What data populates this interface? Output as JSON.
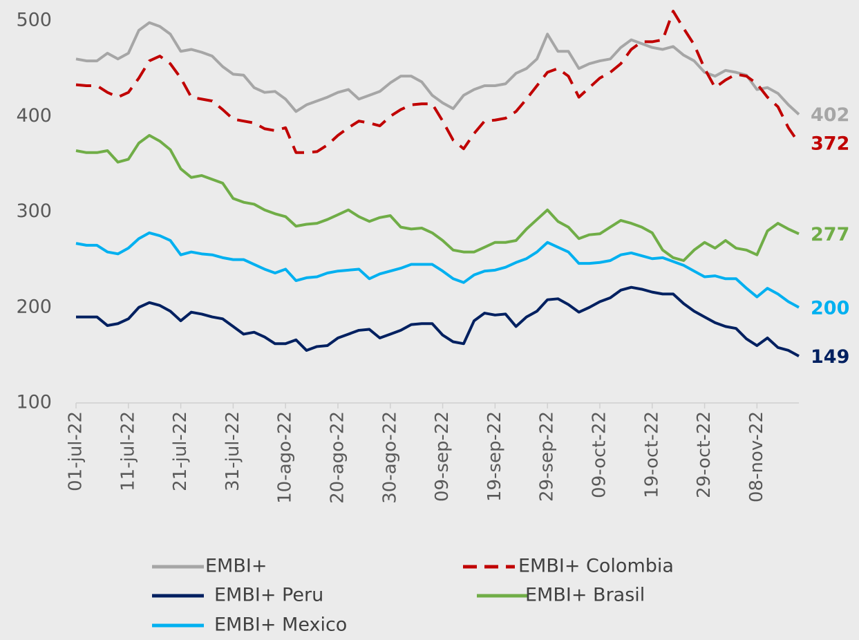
{
  "chart_data": {
    "type": "line",
    "categories": [
      "01-jul-22",
      null,
      null,
      null,
      null,
      "11-jul-22",
      null,
      null,
      null,
      null,
      "21-jul-22",
      null,
      null,
      null,
      null,
      "31-jul-22",
      null,
      null,
      null,
      null,
      "10-ago-22",
      null,
      null,
      null,
      null,
      "20-ago-22",
      null,
      null,
      null,
      null,
      "30-ago-22",
      null,
      null,
      null,
      null,
      "09-sep-22",
      null,
      null,
      null,
      null,
      "19-sep-22",
      null,
      null,
      null,
      null,
      "29-sep-22",
      null,
      null,
      null,
      null,
      "09-oct-22",
      null,
      null,
      null,
      null,
      "19-oct-22",
      null,
      null,
      null,
      null,
      "29-oct-22",
      null,
      null,
      null,
      null,
      "08-nov-22",
      null,
      null,
      null,
      null
    ],
    "ylim": [
      100,
      500
    ],
    "yticks": [
      100,
      200,
      300,
      400,
      500
    ],
    "grid": false,
    "series": [
      {
        "name": "EMBI+",
        "color": "#a6a6a6",
        "values": [
          460,
          458,
          458,
          466,
          460,
          466,
          490,
          498,
          494,
          486,
          468,
          470,
          467,
          463,
          452,
          444,
          443,
          430,
          425,
          426,
          418,
          405,
          412,
          416,
          420,
          425,
          428,
          418,
          422,
          426,
          435,
          442,
          442,
          436,
          422,
          414,
          408,
          422,
          428,
          432,
          432,
          434,
          445,
          450,
          460,
          486,
          468,
          468,
          450,
          455,
          458,
          460,
          472,
          480,
          476,
          472,
          470,
          473,
          464,
          458,
          446,
          442,
          448,
          446,
          443,
          428,
          430,
          424,
          412,
          402
        ]
      },
      {
        "name": "EMBI+ Colombia",
        "color": "#c00000",
        "style": "dashed",
        "values": [
          433,
          432,
          432,
          425,
          420,
          425,
          440,
          458,
          463,
          455,
          440,
          420,
          418,
          416,
          407,
          397,
          395,
          393,
          387,
          385,
          388,
          362,
          362,
          363,
          370,
          380,
          388,
          395,
          393,
          390,
          400,
          407,
          412,
          413,
          413,
          395,
          375,
          366,
          382,
          395,
          396,
          398,
          405,
          418,
          432,
          446,
          450,
          442,
          420,
          430,
          440,
          446,
          455,
          470,
          478,
          478,
          480,
          510,
          492,
          475,
          450,
          430,
          438,
          444,
          442,
          434,
          420,
          410,
          388,
          372
        ]
      },
      {
        "name": "EMBI+ Peru",
        "color": "#002060",
        "values": [
          190,
          190,
          190,
          181,
          183,
          188,
          200,
          205,
          202,
          196,
          186,
          195,
          193,
          190,
          188,
          180,
          172,
          174,
          169,
          162,
          162,
          166,
          155,
          159,
          160,
          168,
          172,
          176,
          177,
          168,
          172,
          176,
          182,
          183,
          183,
          171,
          164,
          162,
          186,
          194,
          192,
          193,
          180,
          190,
          196,
          208,
          209,
          203,
          195,
          200,
          206,
          210,
          218,
          221,
          219,
          216,
          214,
          214,
          204,
          196,
          190,
          184,
          180,
          178,
          167,
          160,
          168,
          158,
          155,
          149
        ]
      },
      {
        "name": "EMBI+ Brasil",
        "color": "#70ad47",
        "values": [
          364,
          362,
          362,
          364,
          352,
          355,
          372,
          380,
          374,
          365,
          345,
          336,
          338,
          334,
          330,
          314,
          310,
          308,
          302,
          298,
          295,
          285,
          287,
          288,
          292,
          297,
          302,
          295,
          290,
          294,
          296,
          284,
          282,
          283,
          278,
          270,
          260,
          258,
          258,
          263,
          268,
          268,
          270,
          282,
          292,
          302,
          290,
          284,
          272,
          276,
          277,
          284,
          291,
          288,
          284,
          278,
          260,
          252,
          249,
          260,
          268,
          262,
          270,
          262,
          260,
          255,
          280,
          288,
          282,
          277
        ]
      },
      {
        "name": "EMBI+ Mexico",
        "color": "#00b0f0",
        "values": [
          267,
          265,
          265,
          258,
          256,
          262,
          272,
          278,
          275,
          270,
          255,
          258,
          256,
          255,
          252,
          250,
          250,
          245,
          240,
          236,
          240,
          228,
          231,
          232,
          236,
          238,
          239,
          240,
          230,
          235,
          238,
          241,
          245,
          245,
          245,
          238,
          230,
          226,
          234,
          238,
          239,
          242,
          247,
          251,
          258,
          268,
          263,
          258,
          246,
          246,
          247,
          249,
          255,
          257,
          254,
          251,
          252,
          248,
          244,
          238,
          232,
          233,
          230,
          230,
          220,
          211,
          220,
          214,
          206,
          200
        ]
      }
    ]
  }
}
